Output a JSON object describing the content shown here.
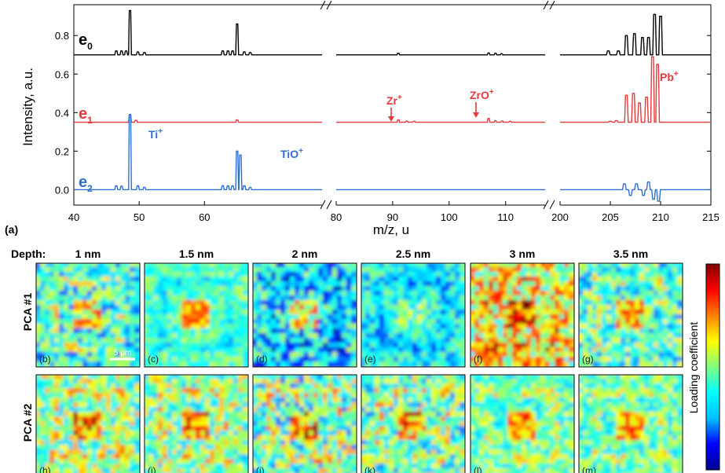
{
  "panel_a_label": "(a)",
  "chart_data": {
    "type": "line",
    "xlabel": "m/z, u",
    "ylabel": "Intensity, a.u.",
    "ylim": [
      -0.08,
      0.96
    ],
    "yticks": [
      "0.0",
      "0.2",
      "0.4",
      "0.6",
      "0.8"
    ],
    "ytick_values": [
      0.0,
      0.2,
      0.4,
      0.6,
      0.8
    ],
    "segments": [
      {
        "xlim": [
          40,
          78
        ],
        "xticks": [
          40,
          50,
          60
        ],
        "xtick_labels": [
          "40",
          "50",
          "60"
        ]
      },
      {
        "xlim": [
          80,
          117
        ],
        "xticks": [
          80,
          90,
          100,
          110
        ],
        "xtick_labels": [
          "80",
          "90",
          "100",
          "110"
        ]
      },
      {
        "xlim": [
          200,
          215
        ],
        "xticks": [
          200,
          205,
          210,
          215
        ],
        "xtick_labels": [
          "200",
          "205",
          "210",
          "215"
        ]
      }
    ],
    "series": [
      {
        "name": "e",
        "subscript": "0",
        "color": "#000000",
        "baseline": 0.7,
        "peaks": [
          [
            46.5,
            0.02
          ],
          [
            47.3,
            0.02
          ],
          [
            48,
            0.02
          ],
          [
            48.6,
            0.23
          ],
          [
            49.8,
            0.015
          ],
          [
            50.8,
            0.012
          ],
          [
            62.8,
            0.02
          ],
          [
            63.6,
            0.02
          ],
          [
            64.3,
            0.02
          ],
          [
            65.0,
            0.16
          ],
          [
            66.1,
            0.015
          ],
          [
            67.0,
            0.012
          ],
          [
            91.0,
            0.008
          ],
          [
            107.0,
            0.01
          ],
          [
            108.2,
            0.008
          ],
          [
            109.3,
            0.006
          ],
          [
            204.8,
            0.02
          ],
          [
            205.8,
            0.02
          ],
          [
            206.6,
            0.1
          ],
          [
            207.4,
            0.11
          ],
          [
            208.2,
            0.09
          ],
          [
            208.8,
            0.09
          ],
          [
            209.4,
            0.21
          ],
          [
            210,
            0.2
          ]
        ]
      },
      {
        "name": "e",
        "subscript": "1",
        "color": "#e8393c",
        "baseline": 0.35,
        "peaks": [
          [
            48.6,
            0.04
          ],
          [
            49.5,
            0.01
          ],
          [
            65.0,
            0.012
          ],
          [
            91.0,
            0.013
          ],
          [
            92.5,
            0.006
          ],
          [
            93.8,
            0.005
          ],
          [
            107.0,
            0.02
          ],
          [
            108.2,
            0.008
          ],
          [
            109.4,
            0.006
          ],
          [
            110.8,
            0.005
          ],
          [
            205,
            0.005
          ],
          [
            205.6,
            0.008
          ],
          [
            206.6,
            0.14
          ],
          [
            207.3,
            0.15
          ],
          [
            207.9,
            0.1
          ],
          [
            208.6,
            0.13
          ],
          [
            209.2,
            0.34
          ],
          [
            209.7,
            0.3
          ]
        ]
      },
      {
        "name": "e",
        "subscript": "2",
        "color": "#2f6fd1",
        "baseline": 0.0,
        "peaks": [
          [
            46.5,
            0.02
          ],
          [
            47.3,
            0.018
          ],
          [
            48.6,
            0.39
          ],
          [
            49.8,
            0.02
          ],
          [
            50.8,
            0.012
          ],
          [
            62.8,
            0.02
          ],
          [
            63.6,
            0.02
          ],
          [
            64.3,
            0.02
          ],
          [
            65.0,
            0.2
          ],
          [
            65.5,
            0.18
          ],
          [
            66.1,
            0.02
          ],
          [
            67.0,
            0.012
          ],
          [
            206.4,
            0.03
          ],
          [
            207.0,
            -0.03
          ],
          [
            207.6,
            0.03
          ],
          [
            208.3,
            -0.03
          ],
          [
            208.8,
            0.04
          ],
          [
            209.3,
            -0.05
          ],
          [
            209.8,
            -0.06
          ]
        ]
      }
    ],
    "annotations": [
      {
        "text": "Ti",
        "sup": "+",
        "color": "#2f6fd1"
      },
      {
        "text": "TiO",
        "sup": "+",
        "color": "#2f6fd1"
      },
      {
        "text": "Zr",
        "sup": "+",
        "color": "#e8393c"
      },
      {
        "text": "ZrO",
        "sup": "+",
        "color": "#e8393c"
      },
      {
        "text": "Pb",
        "sup": "+",
        "color": "#e8393c"
      }
    ]
  },
  "maps": {
    "depth_label": "Depth:",
    "depths": [
      "1 nm",
      "1.5 nm",
      "2 nm",
      "2.5 nm",
      "3 nm",
      "3.5 nm"
    ],
    "rows": [
      "PCA #1",
      "PCA #2"
    ],
    "panel_labels": [
      [
        "(b)",
        "(c)",
        "(d)",
        "(e)",
        "(f)",
        "(g)"
      ],
      [
        "(h)",
        "(i)",
        "(j)",
        "(k)",
        "(l)",
        "(m)"
      ]
    ],
    "scalebar_label": "5 μm",
    "colorbar_label": "Loading coefficient",
    "colormap": [
      "#00008f",
      "#0000ff",
      "#00bfff",
      "#00ffff",
      "#80ff80",
      "#ffff00",
      "#ff8000",
      "#ff0000",
      "#800000"
    ]
  }
}
